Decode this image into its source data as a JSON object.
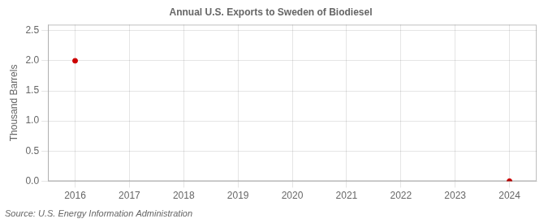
{
  "chart_data": {
    "type": "scatter",
    "title": "Annual U.S. Exports to Sweden of Biodiesel",
    "ylabel": "Thousand Barrels",
    "annotation": "Source: U.S. Energy Information Administration",
    "x": [
      2016,
      2024
    ],
    "values": [
      2.0,
      0.0
    ],
    "color": "#cc0000",
    "xlim": [
      2015.5,
      2024.5
    ],
    "ylim": [
      0.0,
      2.6
    ],
    "xticks": [
      2016,
      2017,
      2018,
      2019,
      2020,
      2021,
      2022,
      2023,
      2024
    ],
    "yticks": [
      {
        "value": 0,
        "label": "0.0"
      },
      0.5,
      {
        "value": 1,
        "label": "1.0"
      },
      1.5,
      {
        "value": 2,
        "label": "2.0"
      },
      2.5
    ],
    "grid": true
  }
}
